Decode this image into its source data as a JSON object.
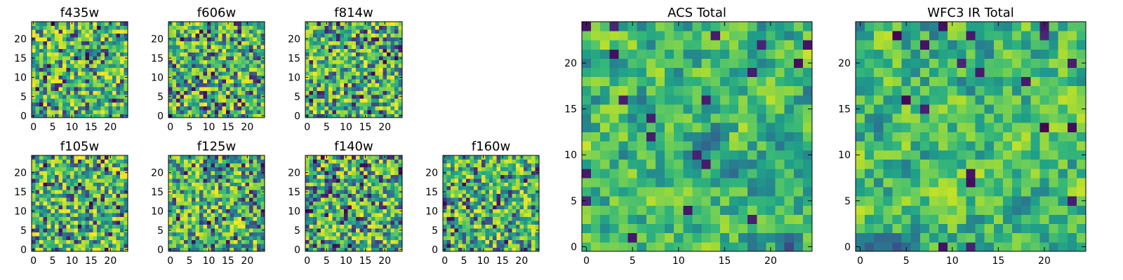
{
  "chart_data": [
    {
      "type": "heatmap",
      "title": "f435w",
      "x_ticks": [
        "0",
        "5",
        "10",
        "15",
        "20"
      ],
      "y_ticks": [
        "0",
        "5",
        "10",
        "15",
        "20"
      ],
      "grid_size": 25,
      "colormap": "viridis",
      "seed": 11
    },
    {
      "type": "heatmap",
      "title": "f606w",
      "x_ticks": [
        "0",
        "5",
        "10",
        "15",
        "20"
      ],
      "y_ticks": [
        "0",
        "5",
        "10",
        "15",
        "20"
      ],
      "grid_size": 25,
      "colormap": "viridis",
      "seed": 23
    },
    {
      "type": "heatmap",
      "title": "f814w",
      "x_ticks": [
        "0",
        "5",
        "10",
        "15",
        "20"
      ],
      "y_ticks": [
        "0",
        "5",
        "10",
        "15",
        "20"
      ],
      "grid_size": 25,
      "colormap": "viridis",
      "seed": 37
    },
    {
      "type": "heatmap",
      "title": "f105w",
      "x_ticks": [
        "0",
        "5",
        "10",
        "15",
        "20"
      ],
      "y_ticks": [
        "0",
        "5",
        "10",
        "15",
        "20"
      ],
      "grid_size": 25,
      "colormap": "viridis",
      "seed": 41
    },
    {
      "type": "heatmap",
      "title": "f125w",
      "x_ticks": [
        "0",
        "5",
        "10",
        "15",
        "20"
      ],
      "y_ticks": [
        "0",
        "5",
        "10",
        "15",
        "20"
      ],
      "grid_size": 25,
      "colormap": "viridis",
      "seed": 53
    },
    {
      "type": "heatmap",
      "title": "f140w",
      "x_ticks": [
        "0",
        "5",
        "10",
        "15",
        "20"
      ],
      "y_ticks": [
        "0",
        "5",
        "10",
        "15",
        "20"
      ],
      "grid_size": 25,
      "colormap": "viridis",
      "seed": 67
    },
    {
      "type": "heatmap",
      "title": "f160w",
      "x_ticks": [
        "0",
        "5",
        "10",
        "15",
        "20"
      ],
      "y_ticks": [
        "0",
        "5",
        "10",
        "15",
        "20"
      ],
      "grid_size": 25,
      "colormap": "viridis",
      "seed": 79
    },
    {
      "type": "heatmap",
      "title": "ACS Total",
      "x_ticks": [
        "0",
        "5",
        "10",
        "15",
        "20"
      ],
      "y_ticks": [
        "0",
        "5",
        "10",
        "15",
        "20"
      ],
      "grid_size": 25,
      "colormap": "viridis",
      "seed": 83
    },
    {
      "type": "heatmap",
      "title": "WFC3 IR Total",
      "x_ticks": [
        "0",
        "5",
        "10",
        "15",
        "20"
      ],
      "y_ticks": [
        "0",
        "5",
        "10",
        "15",
        "20"
      ],
      "grid_size": 25,
      "colormap": "viridis",
      "seed": 97
    }
  ]
}
